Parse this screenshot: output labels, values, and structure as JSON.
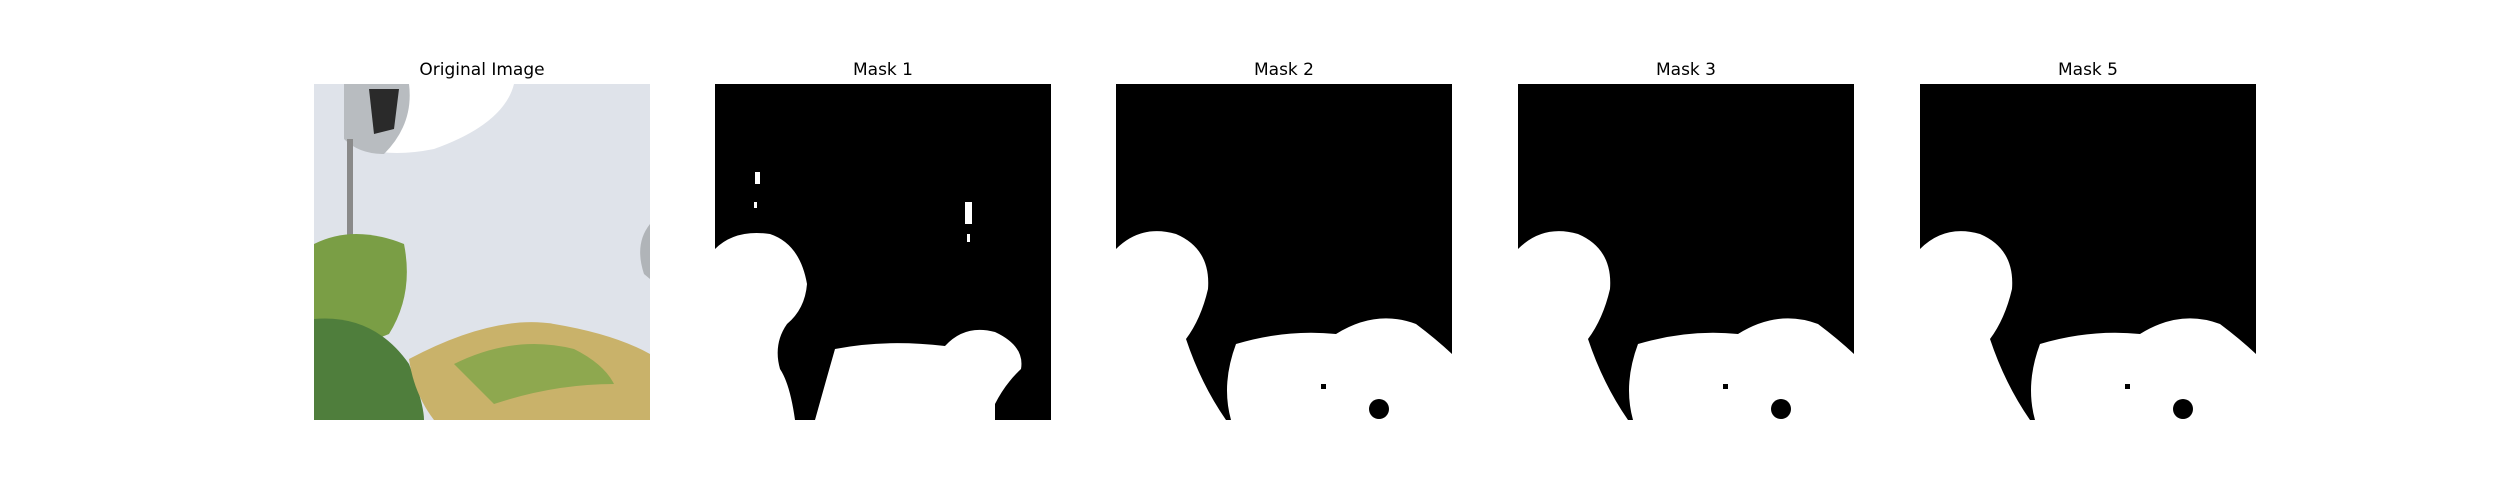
{
  "panels": [
    {
      "title": "Original Image"
    },
    {
      "title": "Mask 1"
    },
    {
      "title": "Mask 2"
    },
    {
      "title": "Mask 3"
    },
    {
      "title": "Mask 5"
    }
  ],
  "colors": {
    "mask_background": "#000000",
    "mask_foreground": "#ffffff",
    "photo_background": "#dfe3ea",
    "leaf_green": "#6f9a4a",
    "leaf_yellow": "#c9b26a"
  }
}
